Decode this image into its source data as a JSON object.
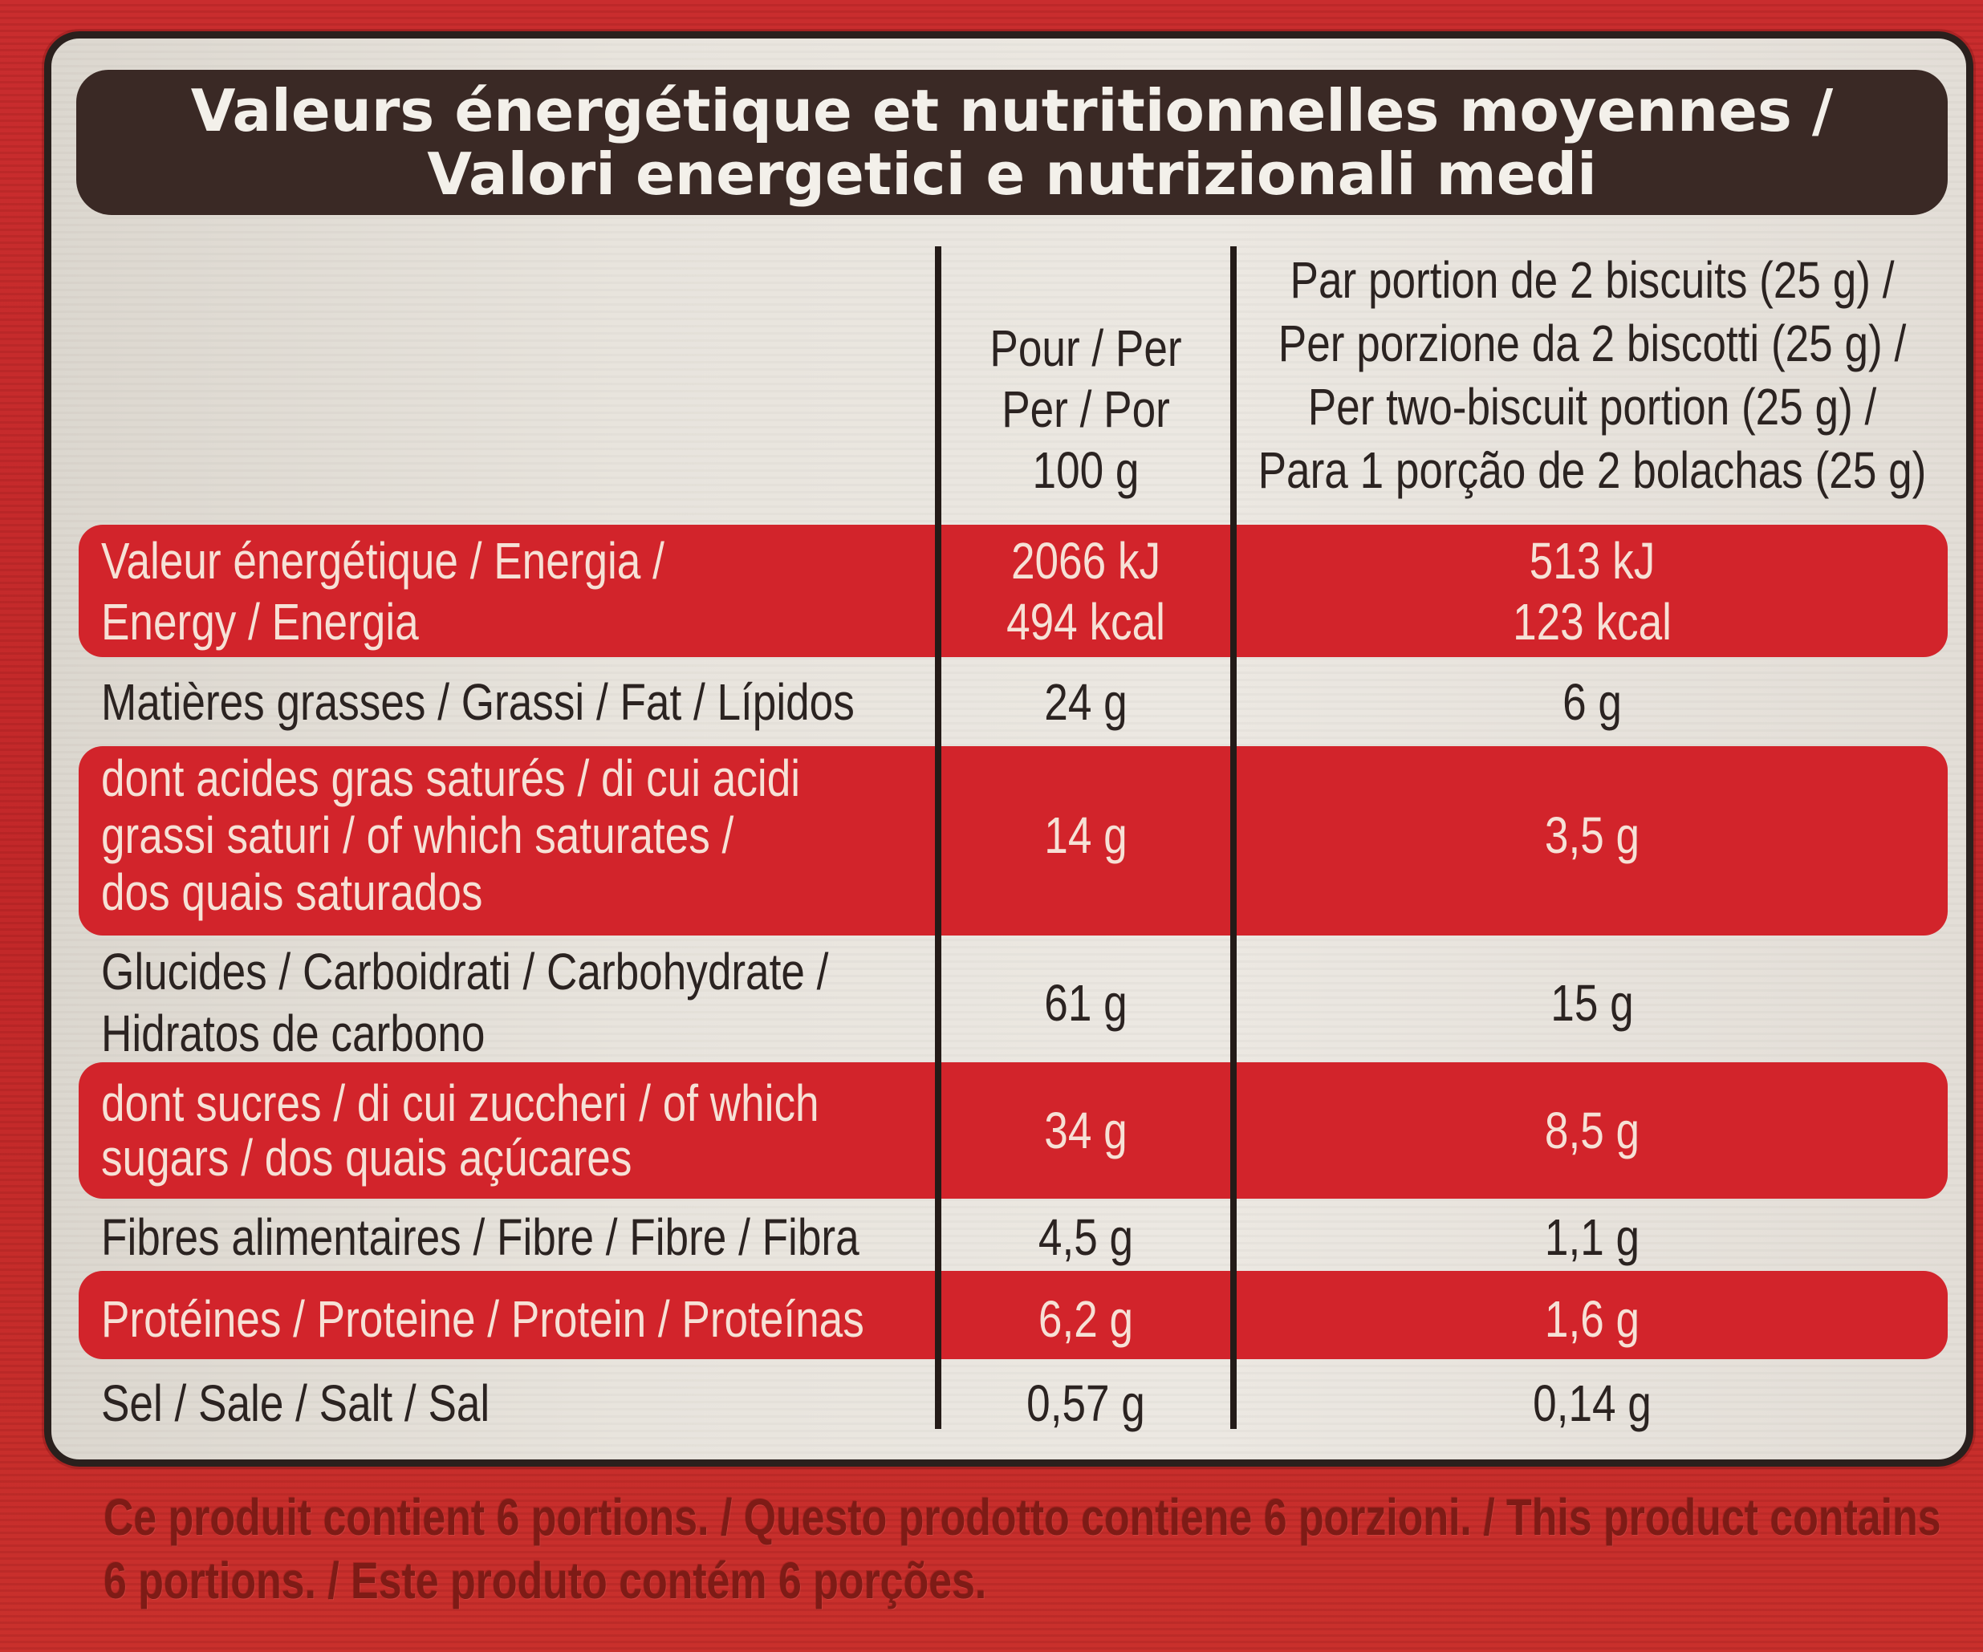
{
  "header": {
    "line1": "Valeurs énergétique et nutritionnelles moyennes /",
    "line2": "Valori energetici e nutrizionali medi"
  },
  "columns": {
    "per_100g": [
      "Pour / Per",
      "Per / Por",
      "100 g"
    ],
    "per_portion": [
      "Par portion de 2 biscuits (25 g) /",
      "Per porzione da 2 biscotti (25 g) /",
      "Per two-biscuit portion (25 g) /",
      "Para 1 porção de 2 bolachas (25 g)"
    ]
  },
  "rows": [
    {
      "label": [
        "Valeur énergétique / Energia /",
        "Energy / Energia"
      ],
      "per_100g": [
        "2066 kJ",
        "494 kcal"
      ],
      "per_portion": [
        "513 kJ",
        "123 kcal"
      ]
    },
    {
      "label": [
        "Matières grasses / Grassi / Fat / Lípidos"
      ],
      "per_100g": [
        "24 g"
      ],
      "per_portion": [
        "6 g"
      ]
    },
    {
      "label": [
        "dont acides gras saturés / di cui acidi",
        "grassi saturi / of which saturates /",
        "dos quais saturados"
      ],
      "per_100g": [
        "14 g"
      ],
      "per_portion": [
        "3,5 g"
      ]
    },
    {
      "label": [
        "Glucides / Carboidrati / Carbohydrate /",
        "Hidratos de carbono"
      ],
      "per_100g": [
        "61 g"
      ],
      "per_portion": [
        "15 g"
      ]
    },
    {
      "label": [
        "dont sucres / di cui zuccheri / of which",
        "sugars / dos quais açúcares"
      ],
      "per_100g": [
        "34 g"
      ],
      "per_portion": [
        "8,5 g"
      ]
    },
    {
      "label": [
        "Fibres alimentaires / Fibre / Fibre / Fibra"
      ],
      "per_100g": [
        "4,5 g"
      ],
      "per_portion": [
        "1,1 g"
      ]
    },
    {
      "label": [
        "Protéines / Proteine / Protein / Proteínas"
      ],
      "per_100g": [
        "6,2 g"
      ],
      "per_portion": [
        "1,6 g"
      ]
    },
    {
      "label": [
        "Sel / Sale / Salt / Sal"
      ],
      "per_100g": [
        "0,57 g"
      ],
      "per_portion": [
        "0,14 g"
      ]
    }
  ],
  "footer": [
    "Ce produit contient 6 portions. / Questo prodotto contiene 6 porzioni. / This product contains",
    "6 portions. / Este produto contém 6 porções."
  ],
  "colors": {
    "package_red": "#c52a2b",
    "panel_bg": "#e9e5de",
    "header_bg": "#3a2925",
    "band_red": "#d2242b",
    "text_dark": "#2b2321",
    "text_on_red": "#f6e1d6",
    "footer_text": "#7e1b16"
  }
}
